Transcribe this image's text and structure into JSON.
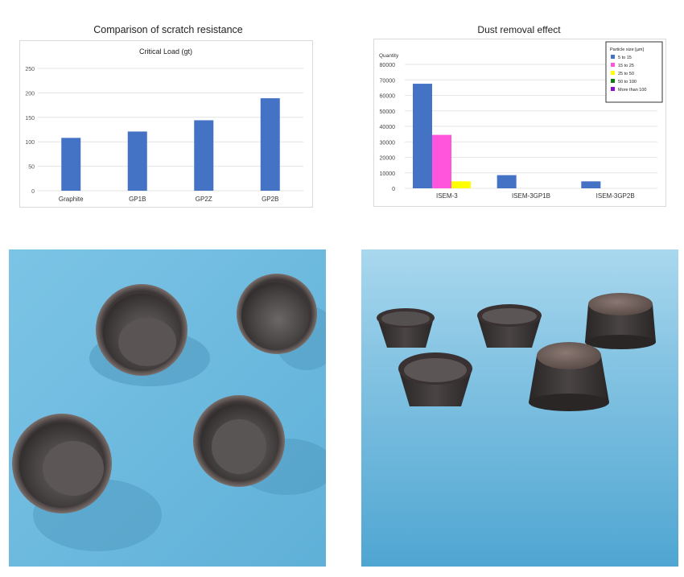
{
  "chart_data": [
    {
      "type": "bar",
      "title": "Comparison of scratch resistance",
      "subtitle": "Critical Load (gt)",
      "categories": [
        "Graphite",
        "GP1B",
        "GP2Z",
        "GP2B"
      ],
      "values": [
        108,
        121,
        144,
        189
      ],
      "ylim": [
        0,
        250
      ],
      "yticks": [
        "0",
        "50",
        "100",
        "150",
        "200",
        "250"
      ],
      "ytick_values": [
        0,
        50,
        100,
        150,
        200,
        250
      ],
      "grid": true,
      "colors": {
        "bar": "#4472c4"
      }
    },
    {
      "type": "bar",
      "title": "Dust removal effect",
      "ylabel": "Quantity",
      "categories": [
        "ISEM-3",
        "ISEM-3GP1B",
        "ISEM-3GP2B"
      ],
      "ylim": [
        0,
        80000
      ],
      "yticks": [
        "0",
        "10000",
        "20000",
        "30000",
        "40000",
        "50000",
        "60000",
        "70000",
        "80000"
      ],
      "ytick_values": [
        0,
        10000,
        20000,
        30000,
        40000,
        50000,
        60000,
        70000,
        80000
      ],
      "grid": true,
      "legend_title": "Particle size [µm]",
      "legend_position": "top-right",
      "series": [
        {
          "name": "5 to 15",
          "color": "#4472c4",
          "values": [
            67500,
            8500,
            4500
          ]
        },
        {
          "name": "15 to 25",
          "color": "#ff55dd",
          "values": [
            34500,
            0,
            0
          ]
        },
        {
          "name": "25 to 50",
          "color": "#ffff00",
          "values": [
            4500,
            0,
            0
          ]
        },
        {
          "name": "50 to 100",
          "color": "#127a12",
          "values": [
            0,
            0,
            0
          ]
        },
        {
          "name": "More than 100",
          "color": "#8b10c8",
          "values": [
            0,
            0,
            0
          ]
        }
      ]
    }
  ],
  "photos": {
    "background_color": "#6eb8dc",
    "piece_color": "#3a3434"
  }
}
